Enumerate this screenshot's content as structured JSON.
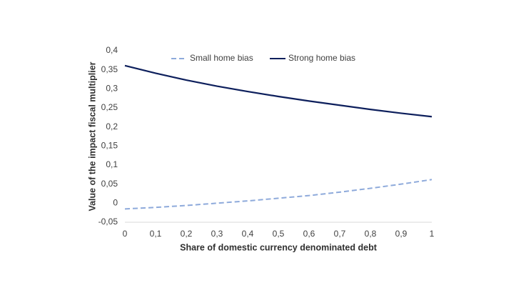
{
  "chart_data": {
    "type": "line",
    "x_label": "Share of domestic currency denominated debt",
    "y_label": "Value of the impact fiscal multiplier",
    "x": [
      0,
      0.1,
      0.2,
      0.3,
      0.4,
      0.5,
      0.6,
      0.7,
      0.8,
      0.9,
      1
    ],
    "series": [
      {
        "name": "Small home bias",
        "color": "#8eaadb",
        "dashed": true,
        "values": [
          -0.015,
          -0.011,
          -0.006,
          0.0,
          0.006,
          0.013,
          0.02,
          0.029,
          0.039,
          0.05,
          0.062
        ]
      },
      {
        "name": "Strong home bias",
        "color": "#0d1f5c",
        "dashed": false,
        "values": [
          0.361,
          0.341,
          0.323,
          0.307,
          0.293,
          0.28,
          0.268,
          0.257,
          0.246,
          0.236,
          0.227
        ]
      }
    ],
    "xlim": [
      0,
      1
    ],
    "xticks": [
      0,
      {
        "value": 0.1,
        "label": "0,1"
      },
      {
        "value": 0.2,
        "label": "0,2"
      },
      {
        "value": 0.3,
        "label": "0,3"
      },
      {
        "value": 0.4,
        "label": "0,4"
      },
      {
        "value": 0.5,
        "label": "0,5"
      },
      {
        "value": 0.6,
        "label": "0,6"
      },
      {
        "value": 0.7,
        "label": "0,7"
      },
      {
        "value": 0.8,
        "label": "0,8"
      },
      {
        "value": 0.9,
        "label": "0,9"
      },
      1
    ],
    "ylim": [
      -0.05,
      0.4
    ],
    "yticks": [
      {
        "value": -0.05,
        "label": "-0,05"
      },
      0,
      {
        "value": 0.05,
        "label": "0,05"
      },
      {
        "value": 0.1,
        "label": "0,1"
      },
      {
        "value": 0.15,
        "label": "0,15"
      },
      {
        "value": 0.2,
        "label": "0,2"
      },
      {
        "value": 0.25,
        "label": "0,25"
      },
      {
        "value": 0.3,
        "label": "0,3"
      },
      {
        "value": 0.35,
        "label": "0,35"
      },
      {
        "value": 0.4,
        "label": "0,4"
      }
    ],
    "grid": false,
    "legend": "top"
  }
}
